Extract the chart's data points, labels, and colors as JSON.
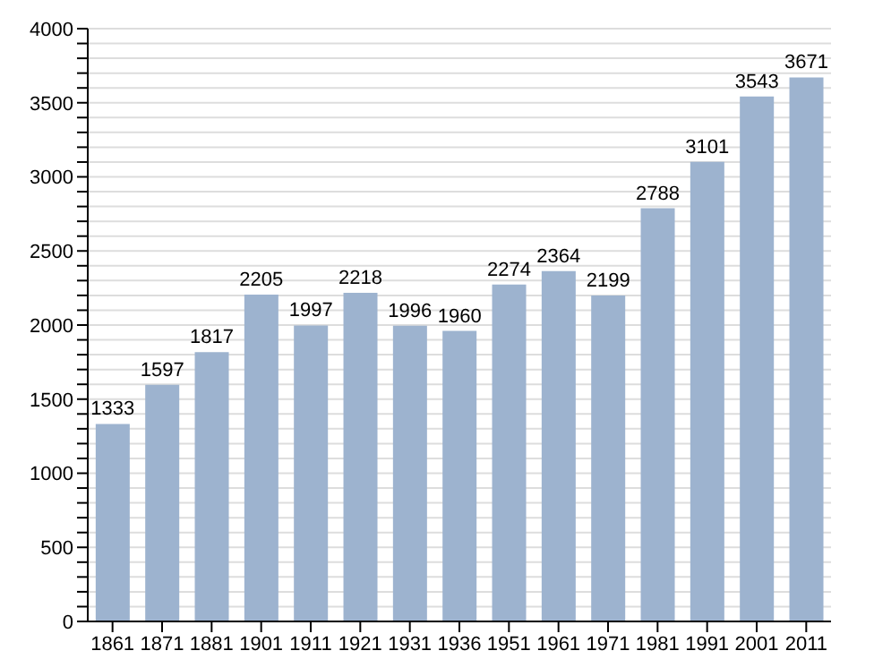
{
  "chart_data": {
    "type": "bar",
    "categories": [
      "1861",
      "1871",
      "1881",
      "1901",
      "1911",
      "1921",
      "1931",
      "1936",
      "1951",
      "1961",
      "1971",
      "1981",
      "1991",
      "2001",
      "2011"
    ],
    "values": [
      1333,
      1597,
      1817,
      2205,
      1997,
      2218,
      1996,
      1960,
      2274,
      2364,
      2199,
      2788,
      3101,
      3543,
      3671
    ],
    "color": "#9db3cf",
    "data_labels": true,
    "grid": "y",
    "ylim": [
      0,
      4000
    ],
    "yticks": [
      0,
      {
        "value": 100,
        "label": null
      },
      {
        "value": 200,
        "label": null
      },
      {
        "value": 300,
        "label": null
      },
      {
        "value": 400,
        "label": null
      },
      500,
      {
        "value": 600,
        "label": null
      },
      {
        "value": 700,
        "label": null
      },
      {
        "value": 800,
        "label": null
      },
      {
        "value": 900,
        "label": null
      },
      1000,
      {
        "value": 1100,
        "label": null
      },
      {
        "value": 1200,
        "label": null
      },
      {
        "value": 1300,
        "label": null
      },
      {
        "value": 1400,
        "label": null
      },
      1500,
      {
        "value": 1600,
        "label": null
      },
      {
        "value": 1700,
        "label": null
      },
      {
        "value": 1800,
        "label": null
      },
      {
        "value": 1900,
        "label": null
      },
      2000,
      {
        "value": 2100,
        "label": null
      },
      {
        "value": 2200,
        "label": null
      },
      {
        "value": 2300,
        "label": null
      },
      {
        "value": 2400,
        "label": null
      },
      2500,
      {
        "value": 2600,
        "label": null
      },
      {
        "value": 2700,
        "label": null
      },
      {
        "value": 2800,
        "label": null
      },
      {
        "value": 2900,
        "label": null
      },
      3000,
      {
        "value": 3100,
        "label": null
      },
      {
        "value": 3200,
        "label": null
      },
      {
        "value": 3300,
        "label": null
      },
      {
        "value": 3400,
        "label": null
      },
      3500,
      {
        "value": 3600,
        "label": null
      },
      {
        "value": 3700,
        "label": null
      },
      {
        "value": 3800,
        "label": null
      },
      {
        "value": 3900,
        "label": null
      },
      4000
    ]
  }
}
